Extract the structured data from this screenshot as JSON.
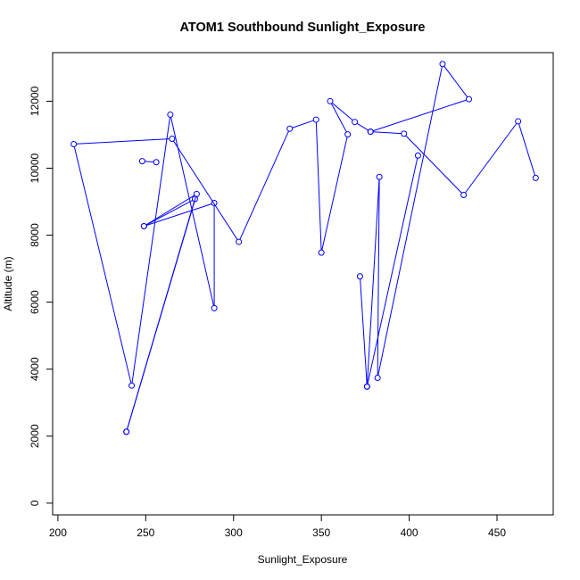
{
  "chart_data": {
    "type": "line",
    "title": "ATOM1 Southbound Sunlight_Exposure",
    "xlabel": "Sunlight_Exposure",
    "ylabel": "Altitude (m)",
    "xlim": [
      197,
      482
    ],
    "ylim": [
      -350,
      13450
    ],
    "x_ticks": [
      200,
      250,
      300,
      350,
      400,
      450
    ],
    "x_tick_labels": [
      "200",
      "250",
      "300",
      "350",
      "400",
      "450"
    ],
    "y_ticks": [
      0,
      2000,
      4000,
      6000,
      8000,
      10000,
      12000
    ],
    "y_tick_labels": [
      "0",
      "2000",
      "4000",
      "6000",
      "8000",
      "10000",
      "12000"
    ],
    "marker": "open-circle",
    "grid": false,
    "legend": "none",
    "colors": {
      "series": "#0000ff",
      "axis": "#000000",
      "background": "#ffffff"
    },
    "series": [
      {
        "points": [
          [
            239,
            2130
          ],
          [
            278,
            9080
          ],
          [
            249,
            8270
          ],
          [
            289,
            8960
          ],
          [
            289,
            5820
          ],
          [
            264,
            11600
          ],
          [
            242,
            3510
          ],
          [
            209,
            10720
          ],
          [
            265,
            10880
          ],
          [
            303,
            7800
          ],
          [
            332,
            11180
          ],
          [
            347,
            11450
          ],
          [
            350,
            7480
          ],
          [
            365,
            11010
          ],
          [
            355,
            12000
          ],
          [
            369,
            11380
          ],
          [
            378,
            11090
          ],
          [
            434,
            12060
          ],
          [
            419,
            13110
          ],
          [
            382,
            3740
          ],
          [
            383,
            9740
          ],
          [
            376,
            3480
          ],
          [
            405,
            10380
          ]
        ]
      },
      {
        "points": [
          [
            248,
            10210
          ],
          [
            256,
            10180
          ]
        ]
      },
      {
        "points": [
          [
            249,
            8270
          ],
          [
            279,
            9230
          ],
          [
            239,
            2130
          ]
        ]
      },
      {
        "points": [
          [
            372,
            6770
          ],
          [
            376,
            3480
          ]
        ]
      },
      {
        "points": [
          [
            378,
            11090
          ],
          [
            397,
            11030
          ],
          [
            431,
            9200
          ],
          [
            462,
            11400
          ],
          [
            472,
            9710
          ]
        ]
      }
    ]
  }
}
